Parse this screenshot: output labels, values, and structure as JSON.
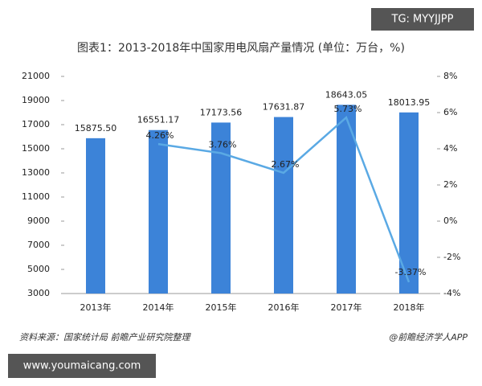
{
  "chart_data": {
    "type": "bar_line",
    "title": "图表1：2013-2018年中国家用电风扇产量情况 (单位：万台，%)",
    "categories": [
      "2013年",
      "2014年",
      "2015年",
      "2016年",
      "2017年",
      "2018年"
    ],
    "series": [
      {
        "type": "bar",
        "color": "#3c83d8",
        "values": [
          15875.5,
          16551.17,
          17173.56,
          17631.87,
          18643.05,
          18013.95
        ],
        "value_labels": [
          "15875.50",
          "16551.17",
          "17173.56",
          "17631.87",
          "18643.05",
          "18013.95"
        ]
      },
      {
        "type": "line",
        "axis": "y2",
        "color": "#5aa9e4",
        "values": [
          null,
          4.26,
          3.76,
          2.67,
          5.73,
          -3.37
        ],
        "value_labels": [
          null,
          "4.26%",
          "3.76%",
          "2.67%",
          "5.73%",
          "-3.37%"
        ]
      }
    ],
    "ylim": [
      3000,
      21000
    ],
    "yticks": [
      3000,
      5000,
      7000,
      9000,
      11000,
      13000,
      15000,
      17000,
      19000,
      21000
    ],
    "y2lim": [
      -4,
      8
    ],
    "y2ticks": [
      {
        "value": -4,
        "label": "-4%"
      },
      {
        "value": -2,
        "label": "-2%"
      },
      {
        "value": 0,
        "label": "0%"
      },
      {
        "value": 2,
        "label": "2%"
      },
      {
        "value": 4,
        "label": "4%"
      },
      {
        "value": 6,
        "label": "6%"
      },
      {
        "value": 8,
        "label": "8%"
      }
    ],
    "grid": false,
    "source": "资料来源：国家统计局 前瞻产业研究院整理",
    "credit": "@前瞻经济学人APP"
  },
  "overlay": {
    "top_tag": "TG: MYYJJPP",
    "bottom_tag": "www.youmaicang.com"
  }
}
